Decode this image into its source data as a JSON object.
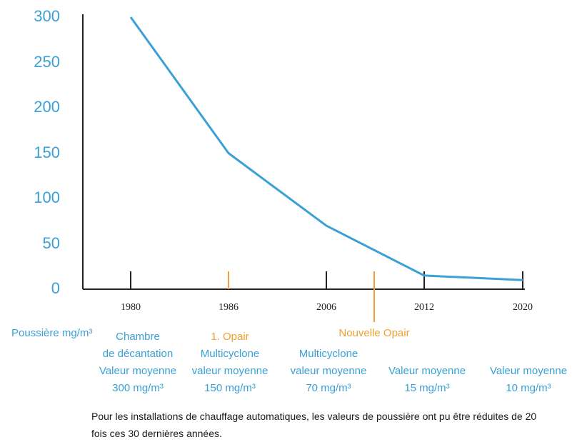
{
  "chart_data": {
    "type": "line",
    "ylim": [
      0,
      300
    ],
    "yticks": [
      "300",
      "250",
      "200",
      "150",
      "100",
      "50",
      "0"
    ],
    "categories": [
      "1980",
      "1986",
      "2006",
      "2012",
      "2020"
    ],
    "values": [
      300,
      150,
      70,
      15,
      10
    ],
    "markers": [
      {
        "after": "2006",
        "label": "Nouvelle Opair",
        "color": "#f0a030"
      }
    ],
    "ylabel": "Poussière mg/m³",
    "descriptions": [
      {
        "highlight": "",
        "lines": [
          "Chambre",
          "de décantation",
          "Valeur moyenne",
          "300 mg/m³"
        ]
      },
      {
        "highlight": "1. Opair",
        "lines": [
          "Multicyclone",
          "valeur moyenne",
          "150 mg/m³"
        ]
      },
      {
        "highlight": "",
        "lines": [
          "Multicyclone",
          "valeur moyenne",
          "70 mg/m³"
        ]
      },
      {
        "highlight": "",
        "lines": [
          "Valeur moyenne",
          "15 mg/m³"
        ]
      },
      {
        "highlight": "",
        "lines": [
          "Valeur moyenne",
          "10 mg/m³"
        ]
      }
    ],
    "colors": {
      "line": "#3aa0d6",
      "axis": "#222222",
      "highlight": "#f0a030"
    }
  },
  "caption": "Pour les installations de chauffage automatiques, les valeurs de poussière ont pu être réduites de 20 fois ces 30 dernières années."
}
